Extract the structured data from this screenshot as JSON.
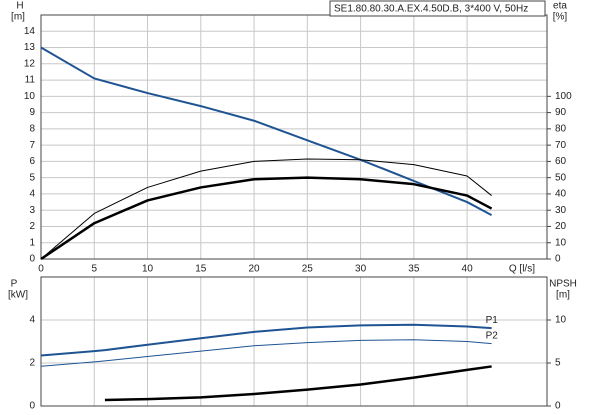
{
  "chart_data": [
    {
      "type": "line",
      "title": "SE1.80.80.30.A.EX.4.50D.B, 3*400 V, 50Hz",
      "y_label": "H",
      "y_unit": "[m]",
      "y2_label": "eta",
      "y2_unit": "[%]",
      "x_label": "Q [l/s]",
      "x": [
        0,
        5,
        10,
        15,
        20,
        25,
        30,
        35,
        40,
        42.3
      ],
      "xlim": [
        0,
        47.5
      ],
      "xticks": [
        0,
        5,
        10,
        15,
        20,
        25,
        30,
        35,
        40
      ],
      "ylim": [
        0,
        15
      ],
      "yticks": [
        0,
        1,
        2,
        3,
        4,
        5,
        6,
        7,
        8,
        9,
        10,
        11,
        12,
        13,
        14
      ],
      "y2lim": [
        0,
        150
      ],
      "y2ticks": [
        0,
        10,
        20,
        30,
        40,
        50,
        60,
        70,
        80,
        90,
        100
      ],
      "grid": true,
      "series": [
        {
          "color": "#1f5493",
          "linewidth": 2,
          "values": [
            13,
            11.1,
            10.2,
            9.4,
            8.5,
            7.3,
            6.1,
            4.8,
            3.5,
            2.7
          ]
        },
        {
          "color": "#000000",
          "linewidth": 1,
          "axis": "y2",
          "values": [
            0,
            28,
            44,
            54,
            60,
            61.5,
            61,
            58,
            51,
            39
          ]
        },
        {
          "color": "#000000",
          "linewidth": 2.5,
          "axis": "y2",
          "values": [
            0,
            22,
            36,
            44,
            49,
            50,
            49,
            46,
            39,
            31
          ]
        }
      ]
    },
    {
      "type": "line",
      "y_label": "P",
      "y_unit": "[kW]",
      "y2_label": "NPSH",
      "y2_unit": "[m]",
      "x": [
        0,
        5,
        6,
        10,
        15,
        20,
        25,
        30,
        35,
        40,
        42.3
      ],
      "xlim": [
        0,
        47.5
      ],
      "xticks": [
        0,
        5,
        10,
        15,
        20,
        25,
        30,
        35,
        40
      ],
      "ylim": [
        0,
        6
      ],
      "yticks": [
        0,
        2,
        4
      ],
      "y2lim": [
        0,
        15
      ],
      "y2ticks": [
        0,
        5,
        10
      ],
      "grid": true,
      "series": [
        {
          "name": "P1",
          "color": "#1f5493",
          "linewidth": 2,
          "values": [
            2.35,
            2.55,
            2.6,
            2.85,
            3.15,
            3.45,
            3.65,
            3.75,
            3.78,
            3.7,
            3.62
          ]
        },
        {
          "name": "P2",
          "color": "#1f5493",
          "linewidth": 1,
          "values": [
            1.85,
            2.05,
            2.1,
            2.3,
            2.55,
            2.8,
            2.95,
            3.05,
            3.08,
            3.0,
            2.9
          ]
        },
        {
          "color": "#000000",
          "linewidth": 2.5,
          "axis": "y2",
          "values": [
            null,
            null,
            0.7,
            0.8,
            1.0,
            1.4,
            1.9,
            2.5,
            3.3,
            4.2,
            4.6
          ]
        }
      ]
    }
  ]
}
